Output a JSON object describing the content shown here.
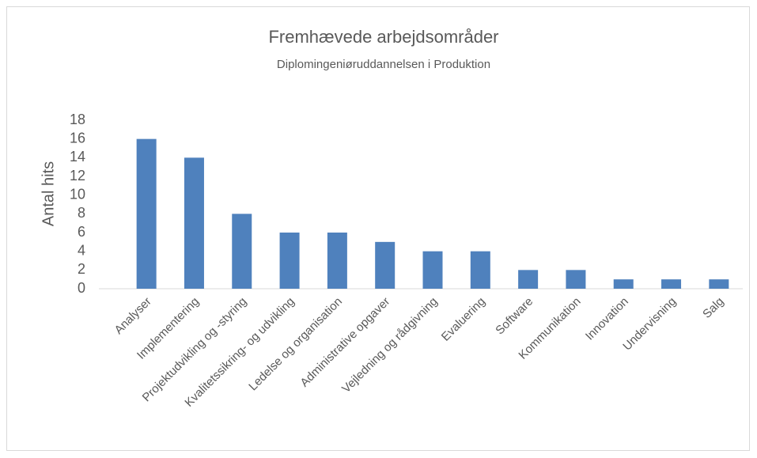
{
  "chart_data": {
    "type": "bar",
    "title": "Fremhævede arbejdsområder",
    "subtitle": "Diplomingeniøruddannelsen i Produktion",
    "y_label": "Antal hits",
    "categories": [
      "Analyser",
      "Implementering",
      "Projektudvikling og -styring",
      "Kvalitetssikring- og udvikling",
      "Ledelse og organisation",
      "Administrative opgaver",
      "Vejledning og rådgivning",
      "Evaluering",
      "Software",
      "Kommunikation",
      "Innovation",
      "Undervisning",
      "Salg"
    ],
    "values": [
      16,
      14,
      8,
      6,
      6,
      5,
      4,
      4,
      2,
      2,
      1,
      1,
      1
    ],
    "color": "#4f81bd",
    "ylim": [
      0,
      18
    ],
    "yticks": [
      0,
      2,
      4,
      6,
      8,
      10,
      12,
      14,
      16,
      18
    ],
    "grid": false
  }
}
